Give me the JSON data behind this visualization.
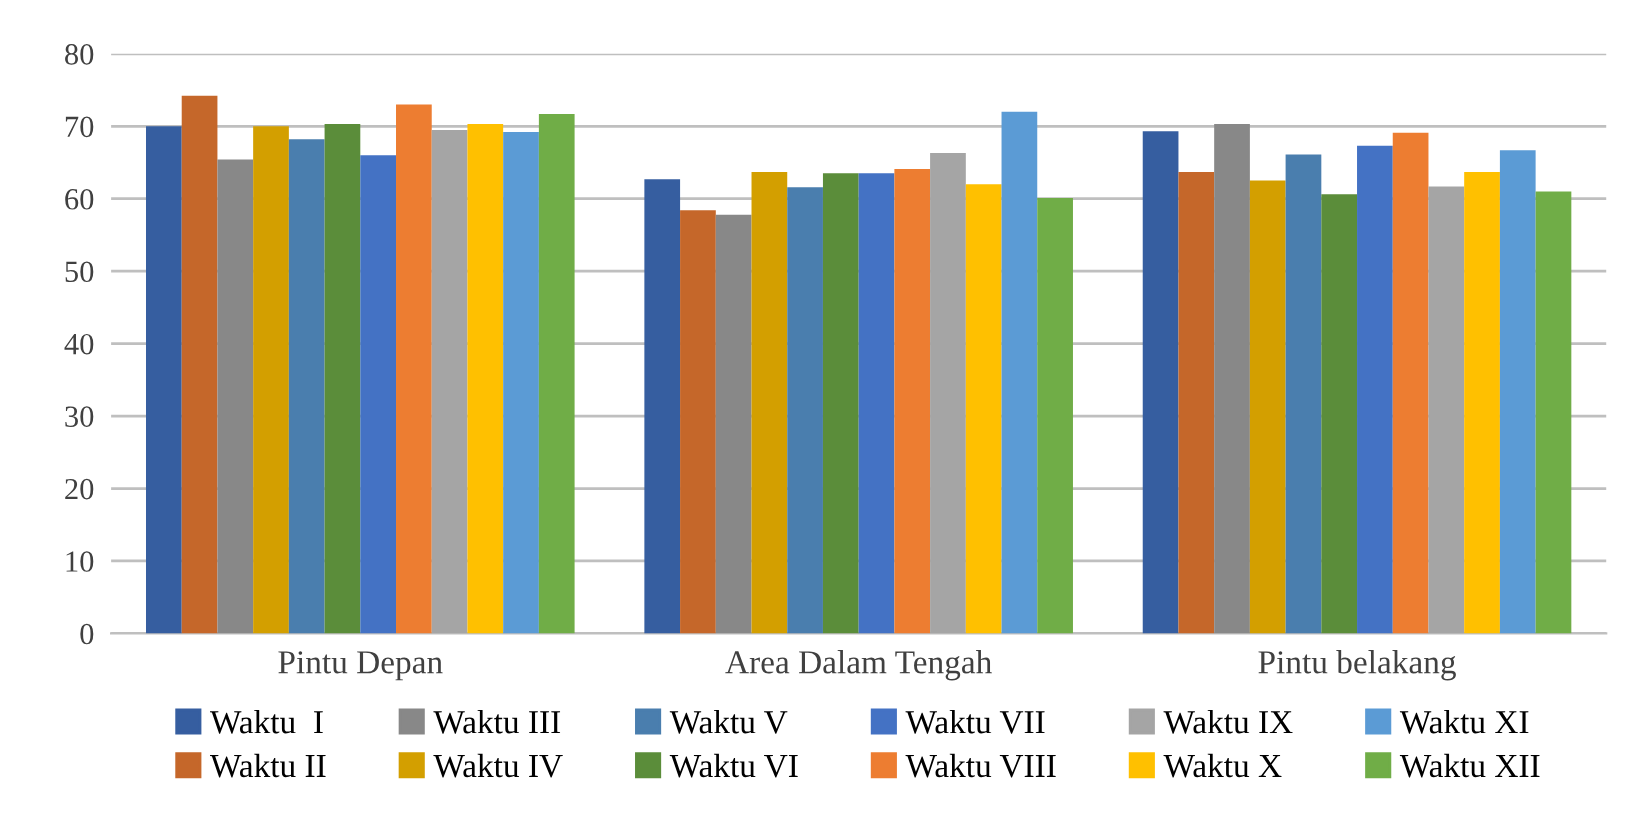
{
  "chart_data": {
    "type": "bar",
    "categories": [
      "Pintu Depan",
      "Area Dalam Tengah",
      "Pintu belakang"
    ],
    "ylim": [
      0,
      80
    ],
    "yticks": [
      0,
      10,
      20,
      30,
      40,
      50,
      60,
      70,
      80
    ],
    "grid": "y",
    "legend": "bottom",
    "series": [
      {
        "name": "Waktu  I",
        "color": "#365ea0",
        "values": [
          70,
          62.7,
          69.3
        ]
      },
      {
        "name": "Waktu II",
        "color": "#c5672a",
        "values": [
          74.2,
          58.4,
          63.7
        ]
      },
      {
        "name": "Waktu III",
        "color": "#888888",
        "values": [
          65.4,
          57.8,
          70.3
        ]
      },
      {
        "name": "Waktu IV",
        "color": "#d39f00",
        "values": [
          70,
          63.7,
          62.5
        ]
      },
      {
        "name": "Waktu V",
        "color": "#4a7eae",
        "values": [
          68.2,
          61.6,
          66.1
        ]
      },
      {
        "name": "Waktu VI",
        "color": "#5b8d3a",
        "values": [
          70.3,
          63.5,
          60.6
        ]
      },
      {
        "name": "Waktu VII",
        "color": "#4472c4",
        "values": [
          66,
          63.5,
          67.3
        ]
      },
      {
        "name": "Waktu VIII",
        "color": "#ed7d31",
        "values": [
          73,
          64.1,
          69.1
        ]
      },
      {
        "name": "Waktu IX",
        "color": "#a5a5a5",
        "values": [
          69.5,
          66.3,
          61.7
        ]
      },
      {
        "name": "Waktu X",
        "color": "#ffc000",
        "values": [
          70.3,
          62,
          63.7
        ]
      },
      {
        "name": "Waktu XI",
        "color": "#5b9bd5",
        "values": [
          69.2,
          72,
          66.7
        ]
      },
      {
        "name": "Waktu XII",
        "color": "#70ad47",
        "values": [
          71.7,
          60.1,
          61
        ]
      }
    ]
  }
}
